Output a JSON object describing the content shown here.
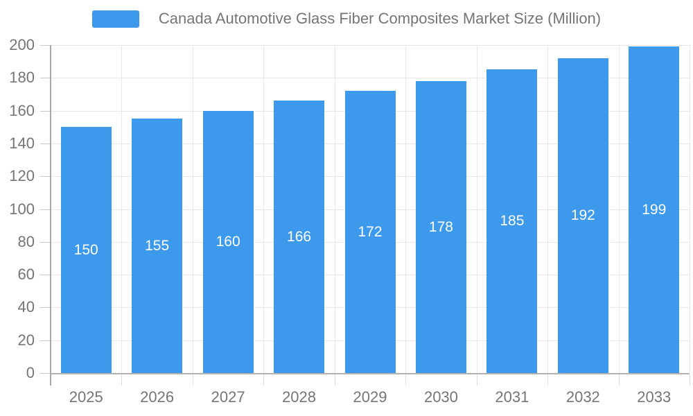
{
  "legend": {
    "label": "Canada Automotive Glass Fiber Composites Market Size (Million)",
    "swatch_color": "#3C99EC"
  },
  "chart_data": {
    "type": "bar",
    "title": "Canada Automotive Glass Fiber Composites Market Size (Million)",
    "categories": [
      "2025",
      "2026",
      "2027",
      "2028",
      "2029",
      "2030",
      "2031",
      "2032",
      "2033"
    ],
    "values": [
      150,
      155,
      160,
      166,
      172,
      178,
      185,
      192,
      199
    ],
    "xlabel": "",
    "ylabel": "",
    "ylim": [
      0,
      200
    ],
    "yticks": [
      0,
      20,
      40,
      60,
      80,
      100,
      120,
      140,
      160,
      180,
      200
    ],
    "grid": true,
    "legend_position": "top",
    "bar_color": "#3C99EC",
    "bar_label_color": "#FFFFFF",
    "axis_text_color": "#757575",
    "gridline_color": "#E8E8E8"
  }
}
